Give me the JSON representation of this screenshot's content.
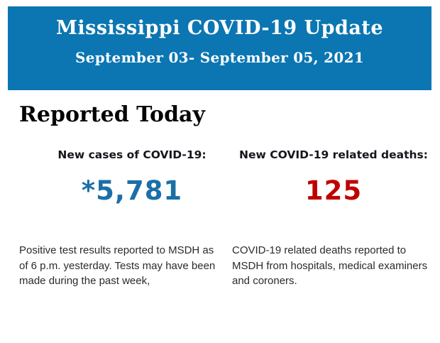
{
  "header": {
    "title": "Mississippi COVID-19 Update",
    "date_range": "September 03- September 05, 2021",
    "background_color": "#0B76B2",
    "text_color": "#FFFFFF"
  },
  "report": {
    "heading": "Reported Today",
    "stats": [
      {
        "label": "New cases of COVID-19:",
        "value": "*5,781",
        "value_color": "#1B6FA8",
        "description": "Positive test results reported to MSDH as of 6 p.m. yesterday. Tests may have been made during the past week,"
      },
      {
        "label": "New COVID-19 related deaths:",
        "value": "125",
        "value_color": "#C00000",
        "description": "COVID-19 related deaths reported to MSDH from hospitals, medical examiners and coroners."
      }
    ]
  }
}
